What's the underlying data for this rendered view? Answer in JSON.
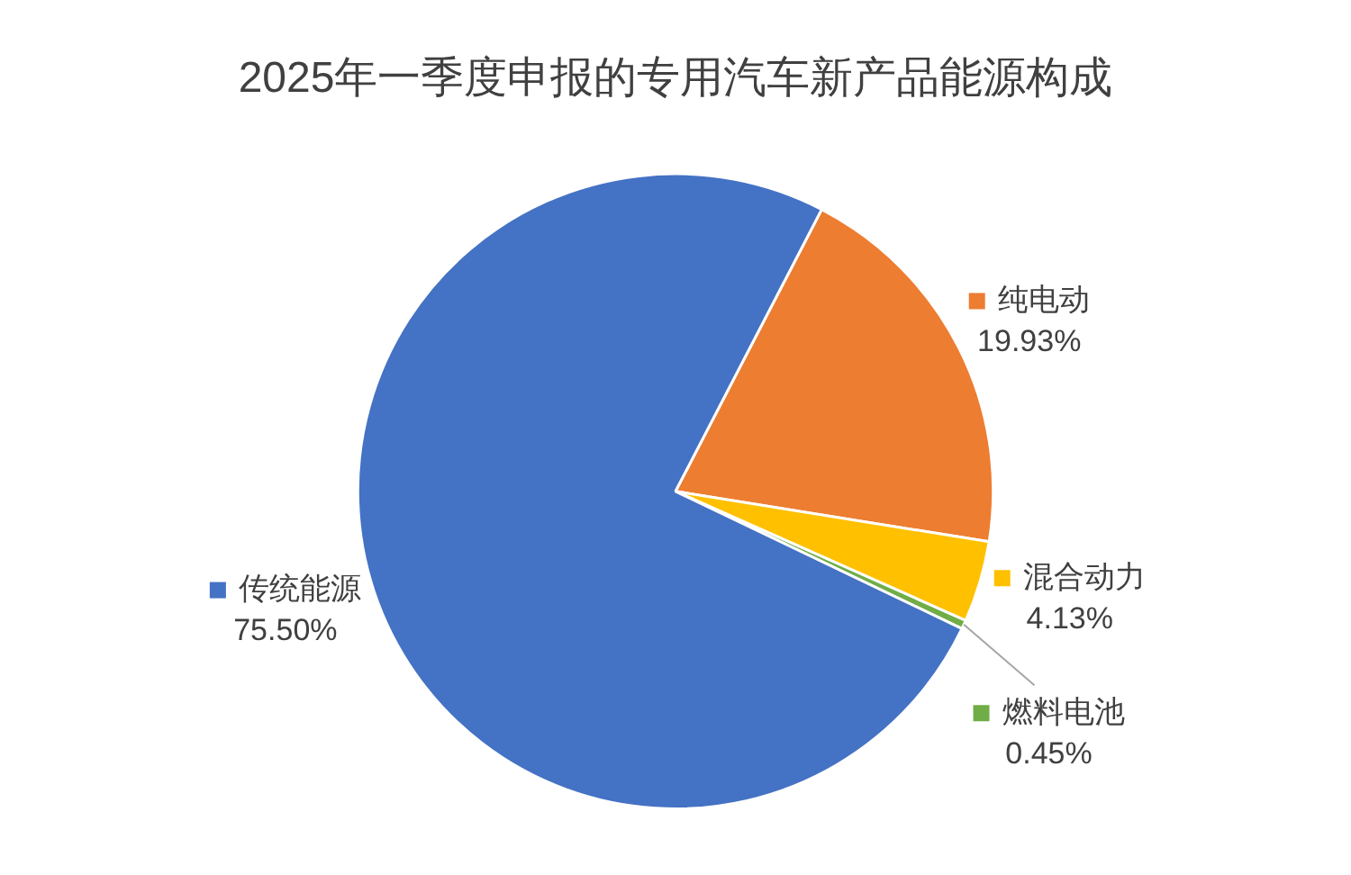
{
  "chart_data": {
    "type": "pie",
    "title": "2025年一季度申报的专用汽车新产品能源构成",
    "categories": [
      "纯电动",
      "混合动力",
      "燃料电池",
      "传统能源"
    ],
    "values": [
      19.93,
      4.13,
      0.45,
      75.5
    ],
    "value_labels": [
      "19.93%",
      "4.13%",
      "0.45%",
      "75.50%"
    ],
    "colors": [
      "#ed7d31",
      "#ffc000",
      "#70ad47",
      "#4472c4"
    ],
    "legend": "right"
  }
}
